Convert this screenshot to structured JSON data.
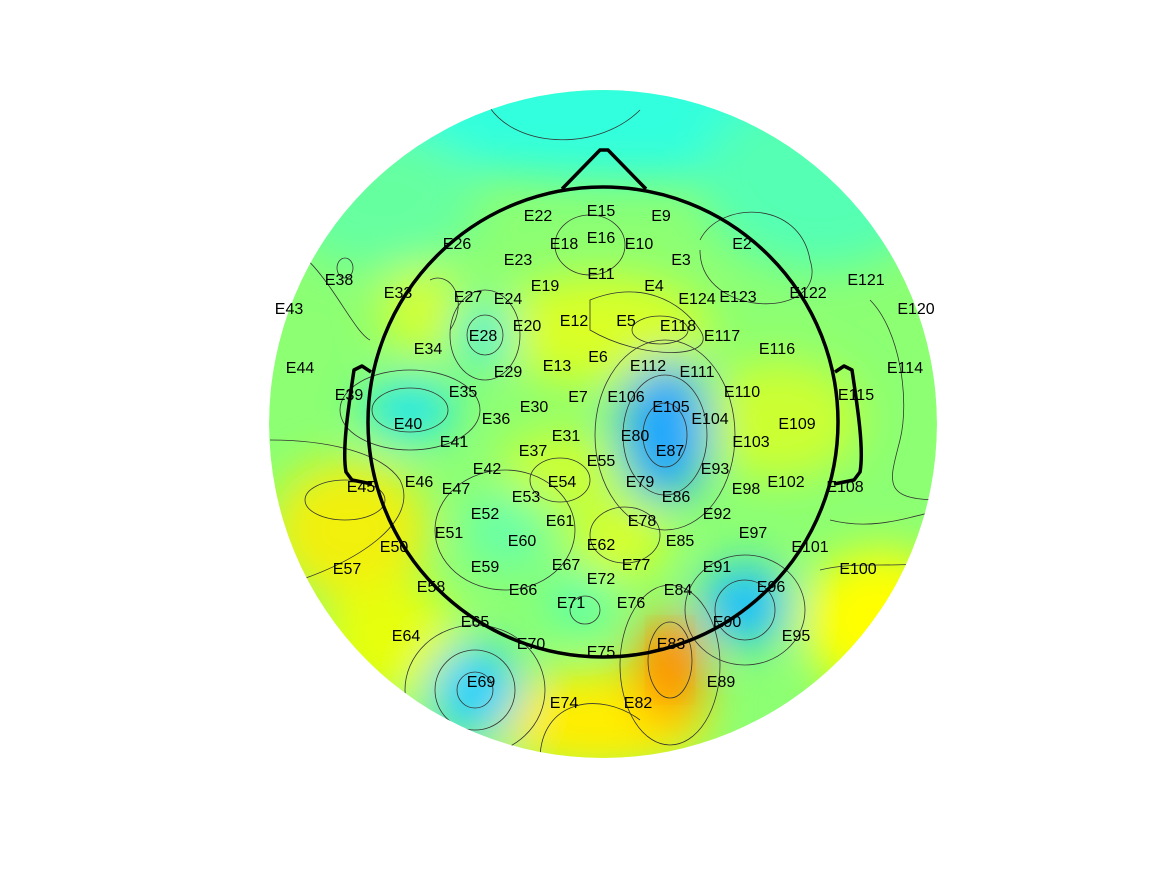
{
  "figure": {
    "type": "eeg-topographic-map",
    "colormap": [
      "#0000ff",
      "#00ffff",
      "#ffff00",
      "#ff8000"
    ],
    "head_outline_color": "#000000",
    "contour_color": "#333333"
  },
  "electrodes": [
    {
      "label": "E15"
    },
    {
      "label": "E9"
    },
    {
      "label": "E22"
    },
    {
      "label": "E16"
    },
    {
      "label": "E18"
    },
    {
      "label": "E10"
    },
    {
      "label": "E26"
    },
    {
      "label": "E2"
    },
    {
      "label": "E23"
    },
    {
      "label": "E3"
    },
    {
      "label": "E11"
    },
    {
      "label": "E121"
    },
    {
      "label": "E38"
    },
    {
      "label": "E19"
    },
    {
      "label": "E4"
    },
    {
      "label": "E43"
    },
    {
      "label": "E33"
    },
    {
      "label": "E27"
    },
    {
      "label": "E24"
    },
    {
      "label": "E124"
    },
    {
      "label": "E123"
    },
    {
      "label": "E122"
    },
    {
      "label": "E120"
    },
    {
      "label": "E12"
    },
    {
      "label": "E5"
    },
    {
      "label": "E20"
    },
    {
      "label": "E118"
    },
    {
      "label": "E28"
    },
    {
      "label": "E117"
    },
    {
      "label": "E34"
    },
    {
      "label": "E116"
    },
    {
      "label": "E6"
    },
    {
      "label": "E44"
    },
    {
      "label": "E13"
    },
    {
      "label": "E112"
    },
    {
      "label": "E29"
    },
    {
      "label": "E111"
    },
    {
      "label": "E114"
    },
    {
      "label": "E35"
    },
    {
      "label": "E39"
    },
    {
      "label": "E7"
    },
    {
      "label": "E106"
    },
    {
      "label": "E110"
    },
    {
      "label": "E115"
    },
    {
      "label": "E30"
    },
    {
      "label": "E105"
    },
    {
      "label": "E36"
    },
    {
      "label": "E104"
    },
    {
      "label": "E40"
    },
    {
      "label": "E109"
    },
    {
      "label": "E31"
    },
    {
      "label": "E80"
    },
    {
      "label": "E41"
    },
    {
      "label": "E103"
    },
    {
      "label": "E37"
    },
    {
      "label": "E87"
    },
    {
      "label": "E55"
    },
    {
      "label": "E42"
    },
    {
      "label": "E93"
    },
    {
      "label": "E79"
    },
    {
      "label": "E54"
    },
    {
      "label": "E46"
    },
    {
      "label": "E102"
    },
    {
      "label": "E45"
    },
    {
      "label": "E47"
    },
    {
      "label": "E98"
    },
    {
      "label": "E108"
    },
    {
      "label": "E86"
    },
    {
      "label": "E53"
    },
    {
      "label": "E52"
    },
    {
      "label": "E92"
    },
    {
      "label": "E61"
    },
    {
      "label": "E78"
    },
    {
      "label": "E51"
    },
    {
      "label": "E97"
    },
    {
      "label": "E60"
    },
    {
      "label": "E85"
    },
    {
      "label": "E62"
    },
    {
      "label": "E50"
    },
    {
      "label": "E101"
    },
    {
      "label": "E67"
    },
    {
      "label": "E77"
    },
    {
      "label": "E59"
    },
    {
      "label": "E91"
    },
    {
      "label": "E57"
    },
    {
      "label": "E100"
    },
    {
      "label": "E72"
    },
    {
      "label": "E96"
    },
    {
      "label": "E58"
    },
    {
      "label": "E66"
    },
    {
      "label": "E84"
    },
    {
      "label": "E71"
    },
    {
      "label": "E76"
    },
    {
      "label": "E65"
    },
    {
      "label": "E90"
    },
    {
      "label": "E64"
    },
    {
      "label": "E95"
    },
    {
      "label": "E70"
    },
    {
      "label": "E83"
    },
    {
      "label": "E75"
    },
    {
      "label": "E69"
    },
    {
      "label": "E89"
    },
    {
      "label": "E74"
    },
    {
      "label": "E82"
    }
  ]
}
